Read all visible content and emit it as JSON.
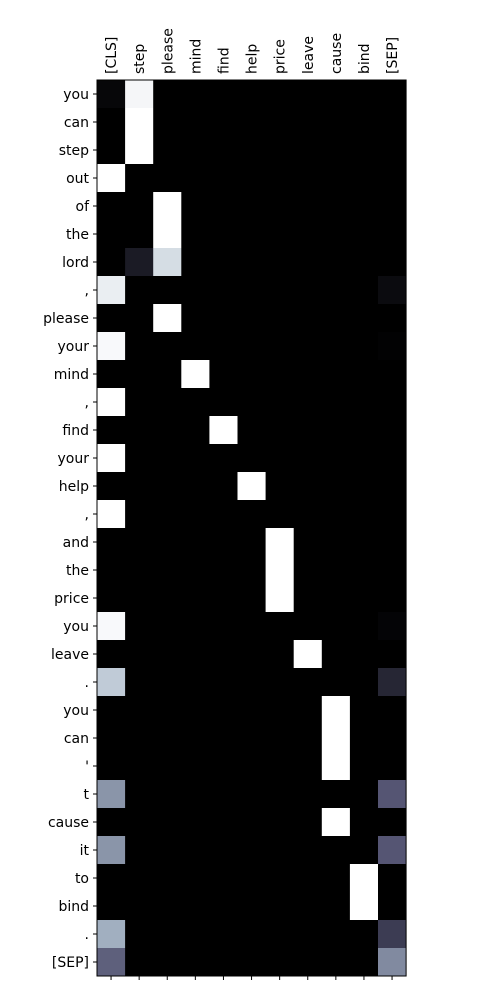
{
  "chart_data": {
    "type": "heatmap",
    "title": "",
    "xlabel": "",
    "ylabel": "",
    "colormap": "bone",
    "value_range": [
      0,
      1
    ],
    "x_labels": [
      "[CLS]",
      "step",
      "please",
      "mind",
      "find",
      "help",
      "price",
      "leave",
      "cause",
      "bind",
      "[SEP]"
    ],
    "y_labels": [
      "you",
      "can",
      "step",
      "out",
      "of",
      "the",
      "lord",
      ",",
      "please",
      "your",
      "mind",
      ",",
      "find",
      "your",
      "help",
      ",",
      "and",
      "the",
      "price",
      "you",
      "leave",
      ".",
      "you",
      "can",
      "'",
      "t",
      "cause",
      "it",
      "to",
      "bind",
      ".",
      "[SEP]"
    ],
    "values": [
      [
        0.03,
        0.97,
        0,
        0,
        0,
        0,
        0,
        0,
        0,
        0,
        0
      ],
      [
        0,
        1,
        0,
        0,
        0,
        0,
        0,
        0,
        0,
        0,
        0
      ],
      [
        0,
        1,
        0,
        0,
        0,
        0,
        0,
        0,
        0,
        0,
        0
      ],
      [
        1,
        0,
        0,
        0,
        0,
        0,
        0,
        0,
        0,
        0,
        0
      ],
      [
        0,
        0,
        1,
        0,
        0,
        0,
        0,
        0,
        0,
        0,
        0
      ],
      [
        0,
        0,
        1,
        0,
        0,
        0,
        0,
        0,
        0,
        0,
        0
      ],
      [
        0,
        0.12,
        0.88,
        0,
        0,
        0,
        0,
        0,
        0,
        0,
        0
      ],
      [
        0.94,
        0,
        0,
        0,
        0,
        0,
        0,
        0,
        0,
        0,
        0.05
      ],
      [
        0,
        0,
        1,
        0,
        0,
        0,
        0,
        0,
        0,
        0,
        0
      ],
      [
        0.98,
        0,
        0,
        0,
        0,
        0,
        0,
        0,
        0,
        0,
        0.01
      ],
      [
        0,
        0,
        0,
        1,
        0,
        0,
        0,
        0,
        0,
        0,
        0
      ],
      [
        1,
        0,
        0,
        0,
        0,
        0,
        0,
        0,
        0,
        0,
        0
      ],
      [
        0,
        0,
        0,
        0,
        1,
        0,
        0,
        0,
        0,
        0,
        0
      ],
      [
        1,
        0,
        0,
        0,
        0,
        0,
        0,
        0,
        0,
        0,
        0
      ],
      [
        0,
        0,
        0,
        0,
        0,
        1,
        0,
        0,
        0,
        0,
        0
      ],
      [
        1,
        0,
        0,
        0,
        0,
        0,
        0,
        0,
        0,
        0,
        0
      ],
      [
        0,
        0,
        0,
        0,
        0,
        0,
        1,
        0,
        0,
        0,
        0
      ],
      [
        0,
        0,
        0,
        0,
        0,
        0,
        1,
        0,
        0,
        0,
        0
      ],
      [
        0,
        0,
        0,
        0,
        0,
        0,
        1,
        0,
        0,
        0,
        0
      ],
      [
        0.98,
        0,
        0,
        0,
        0,
        0,
        0,
        0,
        0,
        0,
        0.02
      ],
      [
        0,
        0,
        0,
        0,
        0,
        0,
        0,
        1,
        0,
        0,
        0
      ],
      [
        0.82,
        0,
        0,
        0,
        0,
        0,
        0,
        0,
        0,
        0,
        0.17
      ],
      [
        0,
        0,
        0,
        0,
        0,
        0,
        0,
        0,
        1,
        0,
        0
      ],
      [
        0,
        0,
        0,
        0,
        0,
        0,
        0,
        0,
        1,
        0,
        0
      ],
      [
        0,
        0,
        0,
        0,
        0,
        0,
        0,
        0,
        1,
        0,
        0
      ],
      [
        0.62,
        0,
        0,
        0,
        0,
        0,
        0,
        0,
        0,
        0,
        0.38
      ],
      [
        0,
        0,
        0,
        0,
        0,
        0,
        0,
        0,
        1,
        0,
        0
      ],
      [
        0.62,
        0,
        0,
        0,
        0,
        0,
        0,
        0,
        0,
        0,
        0.38
      ],
      [
        0,
        0,
        0,
        0,
        0,
        0,
        0,
        0,
        0,
        1,
        0
      ],
      [
        0,
        0,
        0,
        0,
        0,
        0,
        0,
        0,
        0,
        1,
        0
      ],
      [
        0.72,
        0,
        0,
        0,
        0,
        0,
        0,
        0,
        0,
        0,
        0.27
      ],
      [
        0.42,
        0,
        0,
        0,
        0,
        0,
        0,
        0,
        0,
        0,
        0.58
      ]
    ]
  }
}
